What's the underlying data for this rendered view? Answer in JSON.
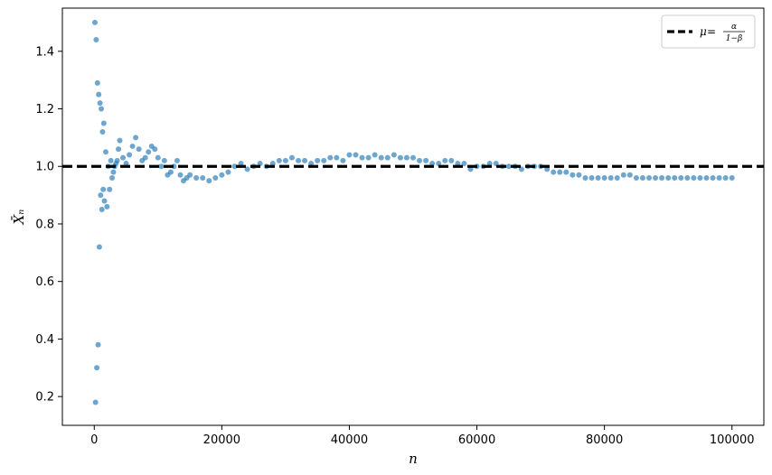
{
  "chart_data": {
    "type": "scatter",
    "title": "",
    "xlabel": "n",
    "ylabel": "X̄ₙ",
    "xlim": [
      -5000,
      105000
    ],
    "ylim": [
      0.1,
      1.55
    ],
    "grid": false,
    "legend_position": "top-right",
    "x_ticks": [
      {
        "value": 0,
        "label": "0"
      },
      {
        "value": 20000,
        "label": "20000"
      },
      {
        "value": 40000,
        "label": "40000"
      },
      {
        "value": 60000,
        "label": "60000"
      },
      {
        "value": 80000,
        "label": "80000"
      },
      {
        "value": 100000,
        "label": "100000"
      }
    ],
    "y_ticks": [
      {
        "value": 0.2,
        "label": "0.2"
      },
      {
        "value": 0.4,
        "label": "0.4"
      },
      {
        "value": 0.6,
        "label": "0.6"
      },
      {
        "value": 0.8,
        "label": "0.8"
      },
      {
        "value": 1.0,
        "label": "1.0"
      },
      {
        "value": 1.2,
        "label": "1.2"
      },
      {
        "value": 1.4,
        "label": "1.4"
      }
    ],
    "reference_line": {
      "y": 1.0,
      "style": "dashed",
      "color": "#000000",
      "legend": {
        "mu": "μ",
        "eq": " = ",
        "num": "α",
        "den": "1−β"
      }
    },
    "series": [
      {
        "color": "#1f77b4",
        "x": [
          100,
          200,
          300,
          400,
          500,
          600,
          700,
          800,
          900,
          1000,
          1100,
          1200,
          1300,
          1400,
          1500,
          1600,
          1800,
          2000,
          2200,
          2400,
          2600,
          2800,
          3000,
          3200,
          3400,
          3600,
          3800,
          4000,
          4500,
          5000,
          5500,
          6000,
          6500,
          7000,
          7500,
          8000,
          8500,
          9000,
          9500,
          10000,
          10500,
          11000,
          11500,
          12000,
          12500,
          13000,
          13500,
          14000,
          14500,
          15000,
          16000,
          17000,
          18000,
          19000,
          20000,
          21000,
          22000,
          23000,
          24000,
          25000,
          26000,
          27000,
          28000,
          29000,
          30000,
          31000,
          32000,
          33000,
          34000,
          35000,
          36000,
          37000,
          38000,
          39000,
          40000,
          41000,
          42000,
          43000,
          44000,
          45000,
          46000,
          47000,
          48000,
          49000,
          50000,
          51000,
          52000,
          53000,
          54000,
          55000,
          56000,
          57000,
          58000,
          59000,
          60000,
          61000,
          62000,
          63000,
          64000,
          65000,
          66000,
          67000,
          68000,
          69000,
          70000,
          71000,
          72000,
          73000,
          74000,
          75000,
          76000,
          77000,
          78000,
          79000,
          80000,
          81000,
          82000,
          83000,
          84000,
          85000,
          86000,
          87000,
          88000,
          89000,
          90000,
          91000,
          92000,
          93000,
          94000,
          95000,
          96000,
          97000,
          98000,
          99000,
          100000
        ],
        "y": [
          1.5,
          0.18,
          1.44,
          0.3,
          1.29,
          0.38,
          1.25,
          0.72,
          1.22,
          0.9,
          1.2,
          0.85,
          1.12,
          0.92,
          1.15,
          0.88,
          1.05,
          0.86,
          1.0,
          0.92,
          1.02,
          0.96,
          0.98,
          1.0,
          1.01,
          1.02,
          1.06,
          1.09,
          1.03,
          1.01,
          1.04,
          1.07,
          1.1,
          1.06,
          1.02,
          1.03,
          1.05,
          1.07,
          1.06,
          1.03,
          1.0,
          1.02,
          0.97,
          0.98,
          1.0,
          1.02,
          0.97,
          0.95,
          0.96,
          0.97,
          0.96,
          0.96,
          0.95,
          0.96,
          0.97,
          0.98,
          1.0,
          1.01,
          0.99,
          1.0,
          1.01,
          1.0,
          1.01,
          1.02,
          1.02,
          1.03,
          1.02,
          1.02,
          1.01,
          1.02,
          1.02,
          1.03,
          1.03,
          1.02,
          1.04,
          1.04,
          1.03,
          1.03,
          1.04,
          1.03,
          1.03,
          1.04,
          1.03,
          1.03,
          1.03,
          1.02,
          1.02,
          1.01,
          1.01,
          1.02,
          1.02,
          1.01,
          1.01,
          0.99,
          1.0,
          1.0,
          1.01,
          1.01,
          1.0,
          1.0,
          1.0,
          0.99,
          1.0,
          1.0,
          1.0,
          0.99,
          0.98,
          0.98,
          0.98,
          0.97,
          0.97,
          0.96,
          0.96,
          0.96,
          0.96,
          0.96,
          0.96,
          0.97,
          0.97,
          0.96,
          0.96,
          0.96,
          0.96,
          0.96,
          0.96,
          0.96,
          0.96,
          0.96,
          0.96,
          0.96,
          0.96,
          0.96,
          0.96,
          0.96,
          0.96
        ]
      }
    ]
  }
}
